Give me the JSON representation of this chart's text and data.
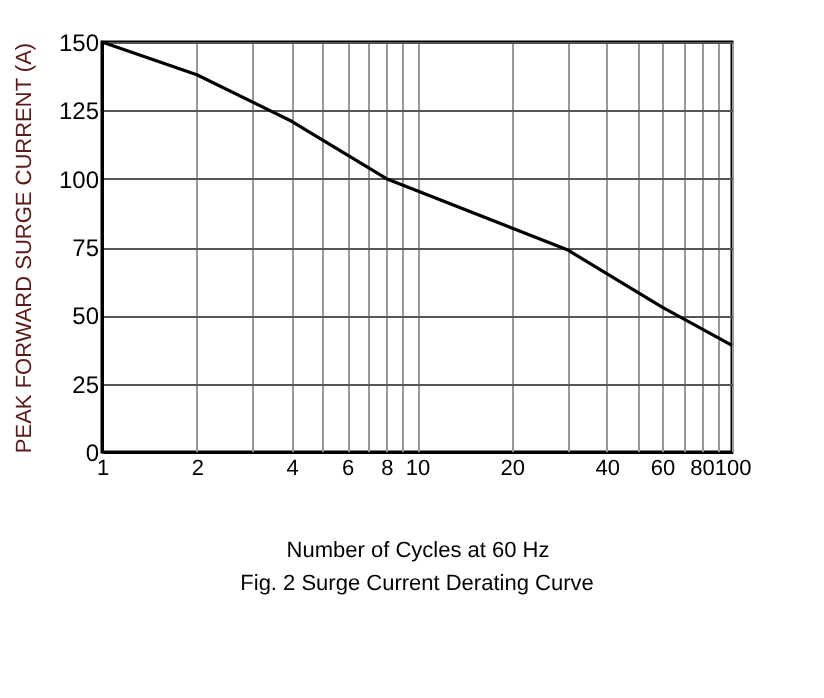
{
  "chart_data": {
    "type": "line",
    "title": "Fig. 2  Surge Current Derating Curve",
    "xlabel": "Number of Cycles at 60 Hz",
    "ylabel": "PEAK FORWARD SURGE CURRENT (A)",
    "x": [
      1,
      2,
      4,
      8,
      30,
      60,
      100
    ],
    "series": [
      {
        "color": "#000000",
        "values": [
          150,
          138,
          121,
          100,
          74,
          53,
          39
        ]
      }
    ],
    "log": "x",
    "xlim": [
      1,
      100
    ],
    "ylim": [
      0,
      150
    ],
    "xticks": [
      1,
      2,
      {
        "value": 3,
        "label": null
      },
      4,
      {
        "value": 5,
        "label": null
      },
      6,
      {
        "value": 7,
        "label": null
      },
      8,
      {
        "value": 9,
        "label": null
      },
      10,
      20,
      {
        "value": 30,
        "label": null
      },
      40,
      {
        "value": 50,
        "label": null
      },
      60,
      {
        "value": 70,
        "label": null
      },
      80,
      {
        "value": 90,
        "label": null
      },
      100
    ],
    "yticks": [
      0,
      25,
      50,
      75,
      100,
      125,
      150
    ],
    "grid": true,
    "marker": "none",
    "line_style": "solid"
  }
}
